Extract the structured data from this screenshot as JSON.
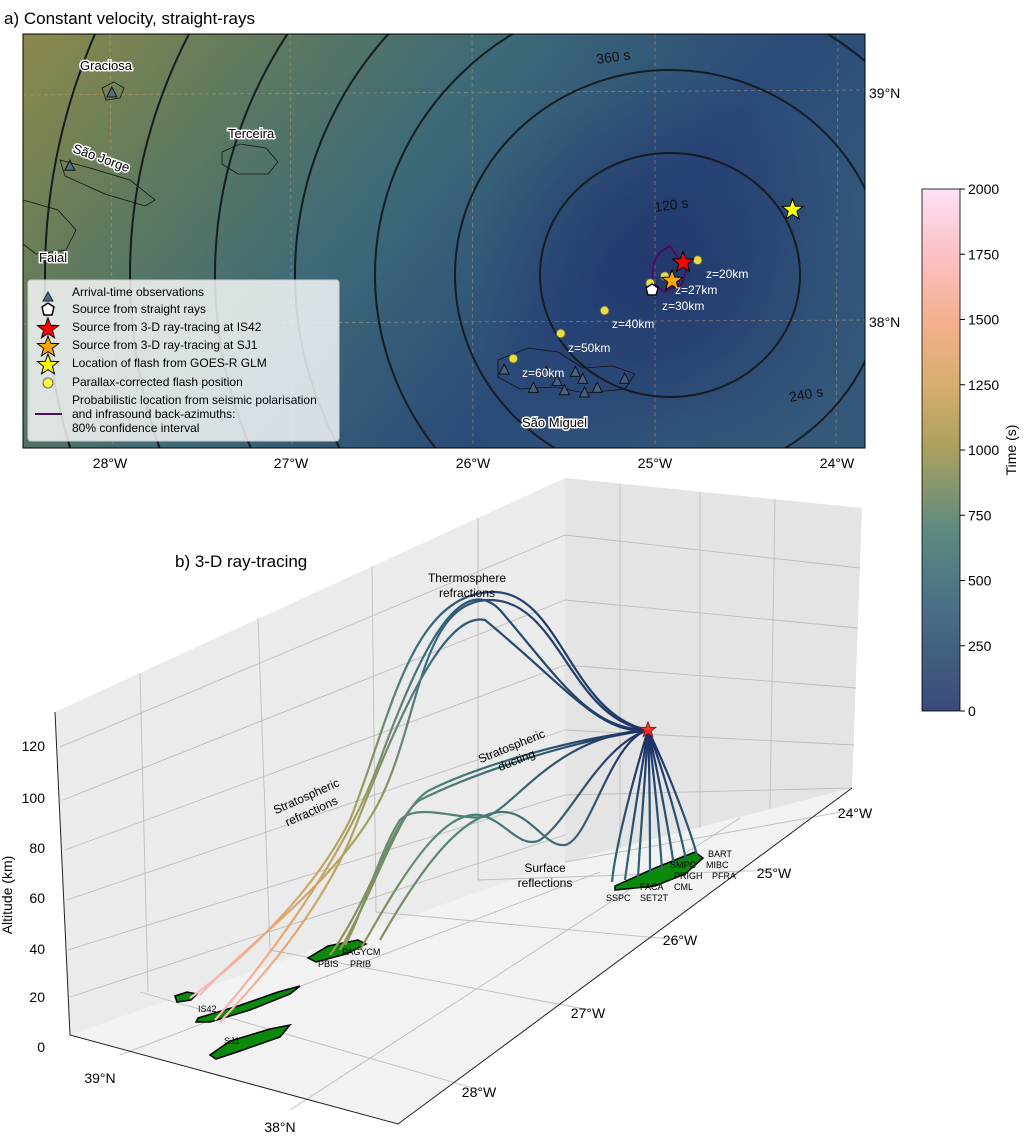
{
  "panel_a": {
    "title": "a) Constant velocity, straight-rays",
    "lon_ticks": [
      {
        "value": -28,
        "label": "28°W"
      },
      {
        "value": -27,
        "label": "27°W"
      },
      {
        "value": -26,
        "label": "26°W"
      },
      {
        "value": -25,
        "label": "25°W"
      },
      {
        "value": -24,
        "label": "24°W"
      }
    ],
    "lat_ticks": [
      {
        "value": 39,
        "label": "39°N"
      },
      {
        "value": 38,
        "label": "38°N"
      }
    ],
    "islands": [
      "Graciosa",
      "São Jorge",
      "Terceira",
      "Faial",
      "São Miguel"
    ],
    "contour_labels": [
      "120 s",
      "240 s",
      "360 s"
    ],
    "depth_labels": [
      "z=20km",
      "z=27km",
      "z=30km",
      "z=40km",
      "z=50km",
      "z=60km"
    ],
    "legend": [
      {
        "icon": "triangle-icon",
        "label": "Arrival-time observations"
      },
      {
        "icon": "pentagon-icon",
        "label": "Source from straight rays"
      },
      {
        "icon": "red-star-icon",
        "label": "Source from 3-D ray-tracing at IS42"
      },
      {
        "icon": "orange-star-icon",
        "label": "Source from 3-D ray-tracing at SJ1"
      },
      {
        "icon": "yellow-star-icon",
        "label": "Location of flash from GOES-R GLM"
      },
      {
        "icon": "yellow-dot-icon",
        "label": "Parallax-corrected flash position"
      },
      {
        "icon": "purple-line-icon",
        "label": "Probabilistic location from seismic polarisation",
        "label2": "and infrasound back-azimuths:",
        "label3": "80% confidence interval"
      }
    ],
    "points": {
      "source_is42": {
        "lon": -24.86,
        "lat": 38.26,
        "color": "#ff0000"
      },
      "source_sj1": {
        "lon": -24.92,
        "lat": 38.18,
        "color": "#ffa500"
      },
      "glm_flash": {
        "lon": -24.26,
        "lat": 38.49,
        "color": "#ffff00"
      },
      "straight_ray_source": {
        "lon": -25.03,
        "lat": 38.14
      },
      "parallax": [
        {
          "lon": -24.78,
          "lat": 38.27
        },
        {
          "lon": -24.96,
          "lat": 38.2
        },
        {
          "lon": -25.04,
          "lat": 38.17
        },
        {
          "lon": -25.29,
          "lat": 38.05
        },
        {
          "lon": -25.53,
          "lat": 37.95
        },
        {
          "lon": -25.79,
          "lat": 37.84
        }
      ],
      "stations": [
        {
          "lon": -27.99,
          "lat": 39.0
        },
        {
          "lon": -28.22,
          "lat": 38.68
        },
        {
          "lon": -25.84,
          "lat": 37.79
        },
        {
          "lon": -25.68,
          "lat": 37.71
        },
        {
          "lon": -25.61,
          "lat": 37.78
        },
        {
          "lon": -25.55,
          "lat": 37.74
        },
        {
          "lon": -25.51,
          "lat": 37.7
        },
        {
          "lon": -25.45,
          "lat": 37.78
        },
        {
          "lon": -25.41,
          "lat": 37.75
        },
        {
          "lon": -25.4,
          "lat": 37.69
        },
        {
          "lon": -25.33,
          "lat": 37.71
        },
        {
          "lon": -25.18,
          "lat": 37.75
        }
      ]
    }
  },
  "colorbar": {
    "label": "Time (s)",
    "range": [
      0,
      2000
    ],
    "ticks": [
      "0",
      "250",
      "500",
      "750",
      "1000",
      "1250",
      "1500",
      "1750",
      "2000"
    ]
  },
  "panel_b": {
    "title": "b) 3-D ray-tracing",
    "zlabel": "Altitude (km)",
    "alt_ticks": [
      "0",
      "20",
      "40",
      "60",
      "80",
      "100",
      "120"
    ],
    "lat_ticks": [
      "39°N",
      "38°N"
    ],
    "lon_ticks": [
      "24°W",
      "25°W",
      "26°W",
      "27°W",
      "28°W"
    ],
    "annotations": {
      "thermo1": "Thermosphere",
      "thermo2": "refractions",
      "duct1": "Stratospheric",
      "duct2": "ducting",
      "refr1": "Stratospheric",
      "refr2": "refractions",
      "surf1": "Surface",
      "surf2": "reflections"
    },
    "stations": [
      "BART",
      "MIBC",
      "PFRA",
      "SMPC",
      "PRIGH",
      "CML",
      "FACA",
      "SSPC",
      "SET2T",
      "PBIS",
      "PRIB",
      "PAGYCM",
      "IS42",
      "SJ1"
    ]
  }
}
